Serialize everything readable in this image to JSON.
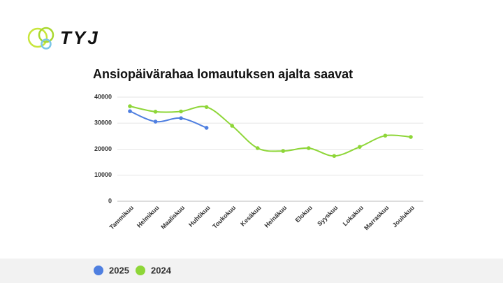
{
  "logo": "TYJ",
  "chart_data": {
    "type": "line",
    "title": "Ansiopäivärahaa lomautuksen ajalta saavat",
    "categories": [
      "Tammikuu",
      "Helmikuu",
      "Maaliskuu",
      "Huhtikuu",
      "Toukokuu",
      "Kesäkuu",
      "Heinäkuu",
      "Elokuu",
      "Syyskuu",
      "Lokakuu",
      "Marraskuu",
      "Joulukuu"
    ],
    "series": [
      {
        "name": "2025",
        "color": "#4f7fe0",
        "values": [
          34600,
          30600,
          31900,
          28200,
          null,
          null,
          null,
          null,
          null,
          null,
          null,
          null
        ]
      },
      {
        "name": "2024",
        "color": "#8ed638",
        "values": [
          36500,
          34400,
          34500,
          36200,
          29000,
          20400,
          19300,
          20400,
          17400,
          20900,
          25200,
          24700
        ]
      }
    ],
    "ylim": [
      0,
      40000
    ],
    "yticks": [
      0,
      10000,
      20000,
      30000,
      40000
    ],
    "grid": true,
    "legend": "bottom"
  }
}
